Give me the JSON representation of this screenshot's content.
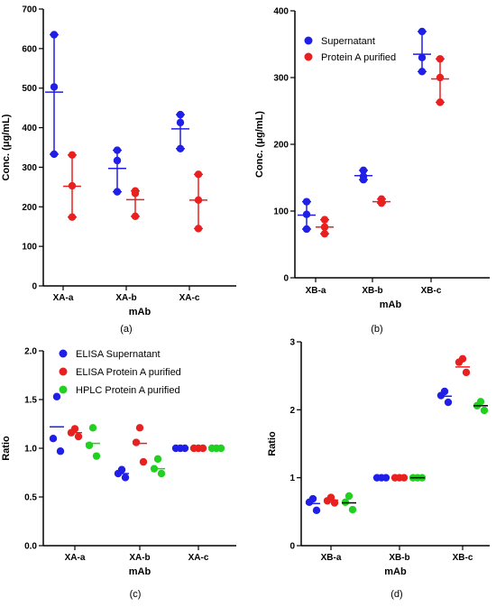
{
  "colors": {
    "blue": "#1f1fe8",
    "red": "#e82020",
    "green": "#22d022",
    "axis": "#000000"
  },
  "chart_data": [
    {
      "panel": "(a)",
      "type": "scatter",
      "xlabel": "mAb",
      "ylabel": "Conc. (μg/mL)",
      "ylim": [
        0,
        700
      ],
      "yticks": [
        0,
        100,
        200,
        300,
        400,
        500,
        600,
        700
      ],
      "categories": [
        "XA-a",
        "XA-b",
        "XA-c"
      ],
      "series": [
        {
          "color": "blue",
          "points": [
            [
              635,
              503,
              333
            ],
            [
              343,
              317,
              238
            ],
            [
              433,
              413,
              347
            ]
          ],
          "mean": [
            490,
            297,
            397
          ],
          "err": [
            [
              333,
              635
            ],
            [
              238,
              343
            ],
            [
              347,
              433
            ]
          ]
        },
        {
          "color": "red",
          "points": [
            [
              331,
              253,
              174
            ],
            [
              240,
              234,
              176
            ],
            [
              282,
              217,
              145
            ]
          ],
          "mean": [
            252,
            218,
            217
          ],
          "err": [
            [
              174,
              331
            ],
            [
              176,
              240
            ],
            [
              145,
              282
            ]
          ]
        }
      ]
    },
    {
      "panel": "(b)",
      "type": "scatter",
      "xlabel": "mAb",
      "ylabel": "Conc. (μg/mL)",
      "ylim": [
        0,
        400
      ],
      "yticks": [
        0,
        100,
        200,
        300,
        400
      ],
      "categories": [
        "XB-a",
        "XB-b",
        "XB-c"
      ],
      "legend": [
        "Supernatant",
        "Protein A purified"
      ],
      "series": [
        {
          "name": "Supernatant",
          "color": "blue",
          "points": [
            [
              114,
              95,
              73
            ],
            [
              161,
              152,
              147
            ],
            [
              369,
              330,
              309
            ]
          ],
          "mean": [
            94,
            153,
            335
          ],
          "err": [
            [
              73,
              114
            ],
            [
              147,
              161
            ],
            [
              309,
              369
            ]
          ]
        },
        {
          "name": "Protein A purified",
          "color": "red",
          "points": [
            [
              87,
              76,
              66
            ],
            [
              118,
              113,
              112
            ],
            [
              328,
              300,
              263
            ]
          ],
          "mean": [
            76,
            114,
            298
          ],
          "err": [
            [
              66,
              87
            ],
            [
              112,
              118
            ],
            [
              263,
              328
            ]
          ]
        }
      ]
    },
    {
      "panel": "(c)",
      "type": "scatter",
      "xlabel": "mAb",
      "ylabel": "Ratio",
      "ylim": [
        0,
        2.0
      ],
      "yticks": [
        "0.0",
        "0.5",
        "1.0",
        "1.5",
        "2.0"
      ],
      "categories": [
        "XA-a",
        "XA-b",
        "XA-c"
      ],
      "legend": [
        "ELISA Supernatant",
        "ELISA Protein A purified",
        "HPLC Protein A purified"
      ],
      "series": [
        {
          "name": "ELISA Supernatant",
          "color": "blue",
          "points": [
            [
              1.53,
              1.1,
              0.97
            ],
            [
              0.78,
              0.74,
              0.7
            ],
            [
              1.0,
              1.0,
              1.0
            ]
          ],
          "mean": [
            1.22,
            0.74,
            1.0
          ]
        },
        {
          "name": "ELISA Protein A purified",
          "color": "red",
          "points": [
            [
              1.2,
              1.16,
              1.12
            ],
            [
              1.21,
              1.06,
              0.86
            ],
            [
              1.0,
              1.0,
              1.0
            ]
          ],
          "mean": [
            1.16,
            1.05,
            1.0
          ]
        },
        {
          "name": "HPLC Protein A purified",
          "color": "green",
          "points": [
            [
              1.21,
              1.03,
              0.92
            ],
            [
              0.89,
              0.79,
              0.74
            ],
            [
              1.0,
              1.0,
              1.0
            ]
          ],
          "mean": [
            1.05,
            0.79,
            1.0
          ]
        }
      ]
    },
    {
      "panel": "(d)",
      "type": "scatter",
      "xlabel": "mAb",
      "ylabel": "Ratio",
      "ylim": [
        0,
        3
      ],
      "yticks": [
        0,
        1,
        2,
        3
      ],
      "categories": [
        "XB-a",
        "XB-b",
        "XB-c"
      ],
      "series": [
        {
          "color": "blue",
          "points": [
            [
              0.69,
              0.64,
              0.52
            ],
            [
              1.0,
              1.0,
              1.0
            ],
            [
              2.27,
              2.21,
              2.11
            ]
          ],
          "mean": [
            0.62,
            1.0,
            2.2
          ]
        },
        {
          "color": "red",
          "points": [
            [
              0.71,
              0.66,
              0.63
            ],
            [
              1.0,
              1.0,
              1.0
            ],
            [
              2.75,
              2.7,
              2.55
            ]
          ],
          "mean": [
            0.67,
            1.0,
            2.63
          ]
        },
        {
          "color": "green",
          "points": [
            [
              0.73,
              0.64,
              0.53
            ],
            [
              1.0,
              1.0,
              1.0
            ],
            [
              2.12,
              2.06,
              1.99
            ]
          ],
          "mean": [
            0.63,
            1.0,
            2.06
          ]
        }
      ]
    }
  ]
}
